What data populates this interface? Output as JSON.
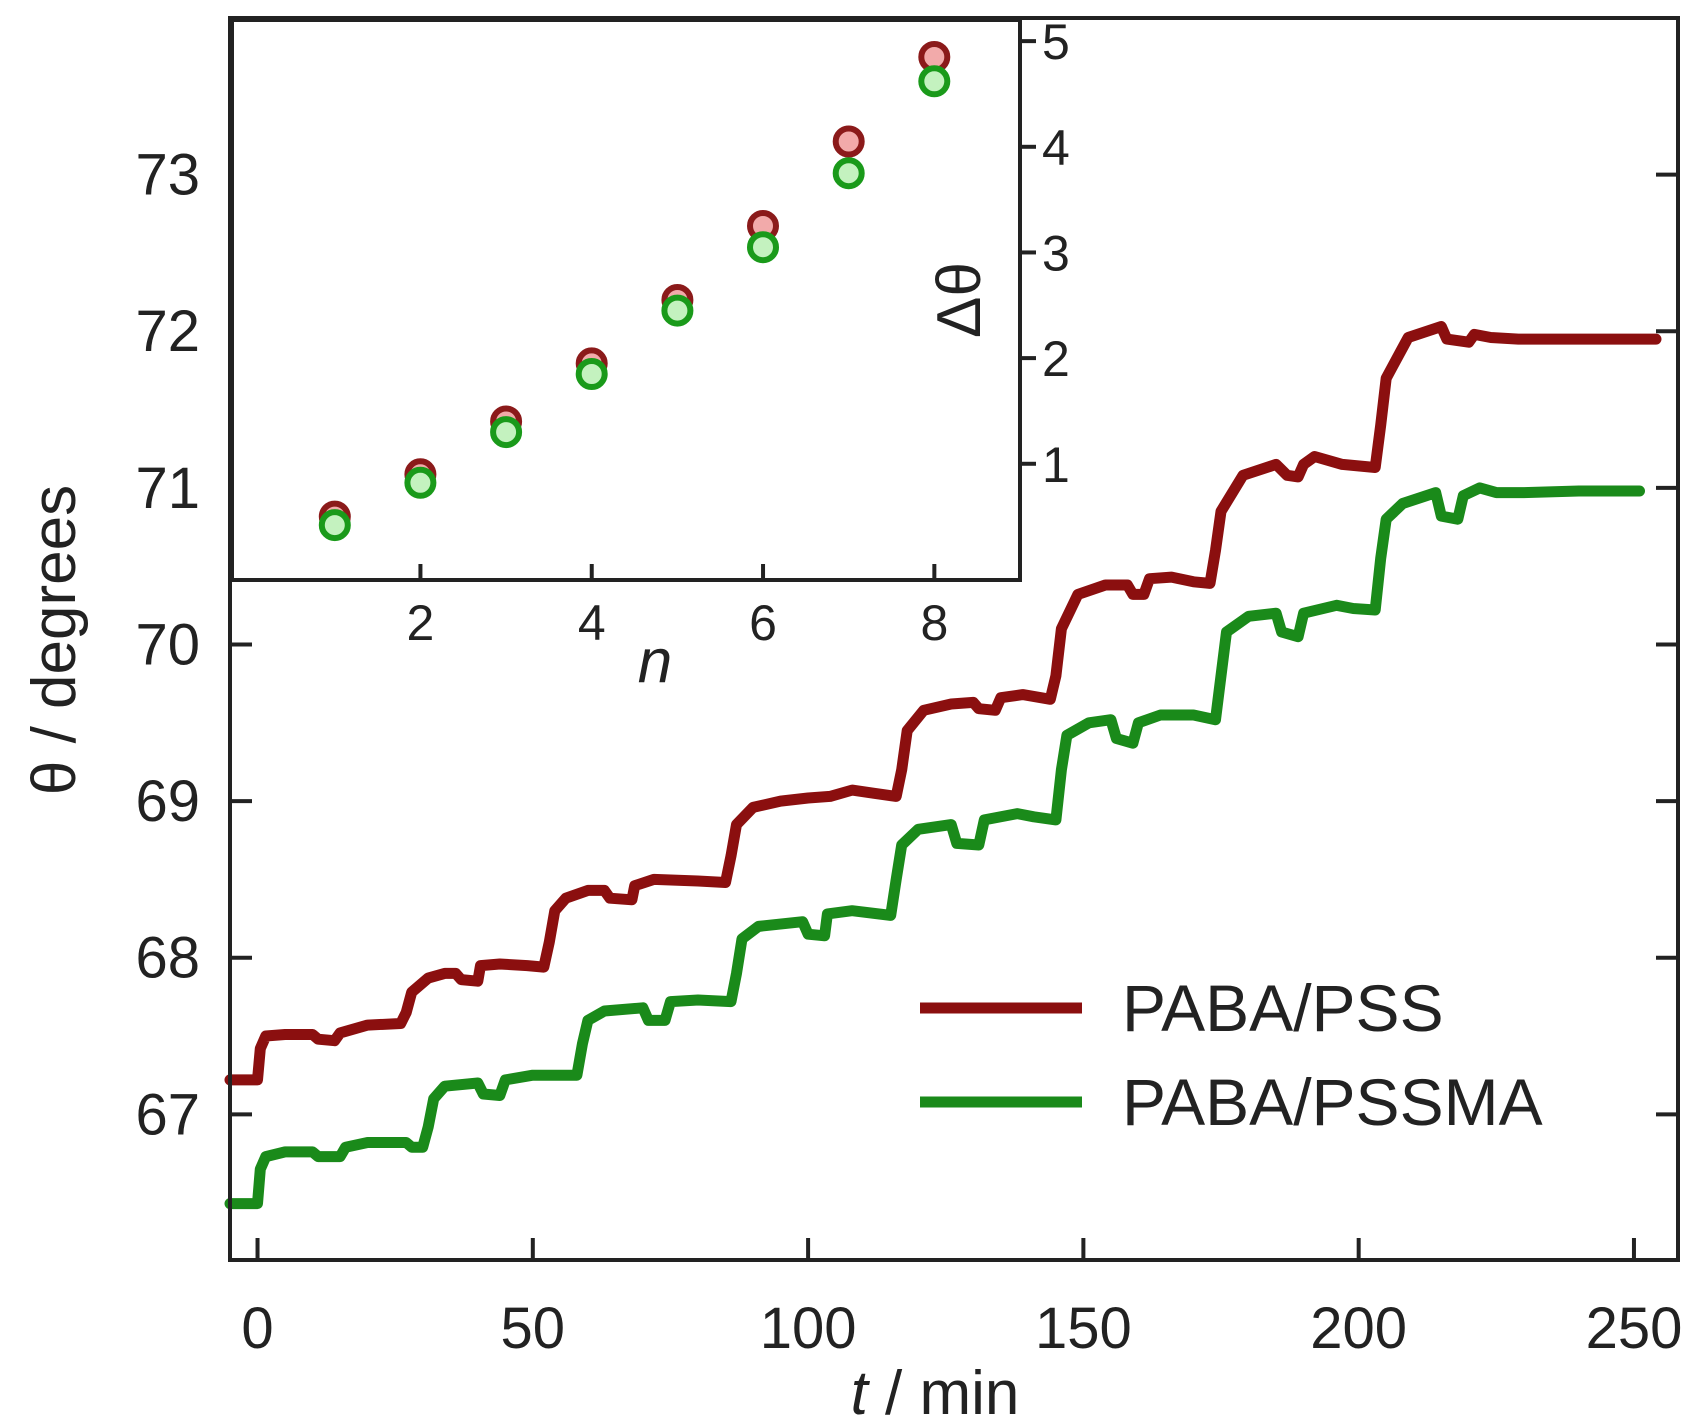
{
  "chart_data": [
    {
      "type": "line",
      "xlabel_var": "t",
      "xlabel_rest": " / min",
      "ylabel": "θ / degrees",
      "xlim": [
        -5,
        258
      ],
      "ylim": [
        66.07,
        74.0
      ],
      "x_ticks": [
        0,
        50,
        100,
        150,
        200,
        250
      ],
      "y_ticks": [
        67,
        68,
        69,
        70,
        71,
        72,
        73
      ],
      "grid": false,
      "legend_position": "bottom-right",
      "series": [
        {
          "name": "PABA/PSS",
          "color": "#8b0f0f",
          "points": [
            [
              -5,
              67.22
            ],
            [
              0,
              67.22
            ],
            [
              0.5,
              67.42
            ],
            [
              1.5,
              67.5
            ],
            [
              5,
              67.51
            ],
            [
              10,
              67.51
            ],
            [
              11,
              67.48
            ],
            [
              14,
              67.47
            ],
            [
              15,
              67.52
            ],
            [
              20,
              67.57
            ],
            [
              26,
              67.58
            ],
            [
              27,
              67.65
            ],
            [
              28,
              67.78
            ],
            [
              31,
              67.87
            ],
            [
              34,
              67.9
            ],
            [
              36,
              67.9
            ],
            [
              37,
              67.86
            ],
            [
              40,
              67.85
            ],
            [
              40.5,
              67.95
            ],
            [
              44,
              67.96
            ],
            [
              49,
              67.95
            ],
            [
              52,
              67.94
            ],
            [
              53,
              68.1
            ],
            [
              54,
              68.3
            ],
            [
              56,
              68.38
            ],
            [
              60,
              68.43
            ],
            [
              63,
              68.43
            ],
            [
              64,
              68.38
            ],
            [
              68,
              68.37
            ],
            [
              68.5,
              68.46
            ],
            [
              72,
              68.5
            ],
            [
              80,
              68.49
            ],
            [
              85,
              68.48
            ],
            [
              86,
              68.65
            ],
            [
              87,
              68.85
            ],
            [
              90,
              68.96
            ],
            [
              95,
              69.0
            ],
            [
              100,
              69.02
            ],
            [
              104,
              69.03
            ],
            [
              108,
              69.07
            ],
            [
              112,
              69.05
            ],
            [
              116,
              69.03
            ],
            [
              117,
              69.2
            ],
            [
              118,
              69.45
            ],
            [
              121,
              69.58
            ],
            [
              126,
              69.62
            ],
            [
              130,
              69.63
            ],
            [
              131,
              69.59
            ],
            [
              134,
              69.58
            ],
            [
              135,
              69.66
            ],
            [
              139,
              69.68
            ],
            [
              144,
              69.65
            ],
            [
              145,
              69.8
            ],
            [
              146,
              70.1
            ],
            [
              149,
              70.32
            ],
            [
              154,
              70.38
            ],
            [
              158,
              70.38
            ],
            [
              159,
              70.32
            ],
            [
              161,
              70.32
            ],
            [
              162,
              70.42
            ],
            [
              166,
              70.43
            ],
            [
              170,
              70.4
            ],
            [
              173,
              70.39
            ],
            [
              174,
              70.6
            ],
            [
              175,
              70.85
            ],
            [
              179,
              71.08
            ],
            [
              185,
              71.15
            ],
            [
              187,
              71.08
            ],
            [
              189,
              71.07
            ],
            [
              190,
              71.15
            ],
            [
              192,
              71.2
            ],
            [
              197,
              71.15
            ],
            [
              203,
              71.13
            ],
            [
              204,
              71.4
            ],
            [
              205,
              71.7
            ],
            [
              209,
              71.96
            ],
            [
              215,
              72.03
            ],
            [
              216,
              71.95
            ],
            [
              220,
              71.93
            ],
            [
              221,
              71.98
            ],
            [
              224,
              71.96
            ],
            [
              229,
              71.95
            ],
            [
              240,
              71.95
            ],
            [
              254,
              71.95
            ]
          ]
        },
        {
          "name": "PABA/PSSMA",
          "color": "#1a8a1a",
          "points": [
            [
              -5,
              66.43
            ],
            [
              0,
              66.43
            ],
            [
              0.5,
              66.65
            ],
            [
              1.5,
              66.73
            ],
            [
              5,
              66.76
            ],
            [
              10,
              66.76
            ],
            [
              11,
              66.73
            ],
            [
              15,
              66.73
            ],
            [
              16,
              66.79
            ],
            [
              20,
              66.82
            ],
            [
              27,
              66.82
            ],
            [
              28,
              66.79
            ],
            [
              30,
              66.79
            ],
            [
              31,
              66.92
            ],
            [
              32,
              67.1
            ],
            [
              34,
              67.18
            ],
            [
              40,
              67.2
            ],
            [
              41,
              67.13
            ],
            [
              44,
              67.12
            ],
            [
              45,
              67.22
            ],
            [
              50,
              67.25
            ],
            [
              58,
              67.25
            ],
            [
              59,
              67.45
            ],
            [
              60,
              67.6
            ],
            [
              63,
              67.66
            ],
            [
              70,
              67.68
            ],
            [
              71,
              67.6
            ],
            [
              74,
              67.6
            ],
            [
              75,
              67.72
            ],
            [
              80,
              67.73
            ],
            [
              86,
              67.72
            ],
            [
              87,
              67.9
            ],
            [
              88,
              68.12
            ],
            [
              91,
              68.2
            ],
            [
              99,
              68.23
            ],
            [
              100,
              68.15
            ],
            [
              103,
              68.14
            ],
            [
              103.5,
              68.28
            ],
            [
              108,
              68.3
            ],
            [
              115,
              68.27
            ],
            [
              116,
              68.5
            ],
            [
              117,
              68.72
            ],
            [
              120,
              68.82
            ],
            [
              126,
              68.85
            ],
            [
              127,
              68.73
            ],
            [
              131,
              68.72
            ],
            [
              132,
              68.88
            ],
            [
              138,
              68.92
            ],
            [
              141,
              68.9
            ],
            [
              145,
              68.88
            ],
            [
              146,
              69.2
            ],
            [
              147,
              69.42
            ],
            [
              151,
              69.5
            ],
            [
              155,
              69.52
            ],
            [
              156,
              69.4
            ],
            [
              159,
              69.37
            ],
            [
              160,
              69.5
            ],
            [
              164,
              69.55
            ],
            [
              170,
              69.55
            ],
            [
              174,
              69.52
            ],
            [
              175,
              69.8
            ],
            [
              176,
              70.08
            ],
            [
              180,
              70.18
            ],
            [
              185,
              70.2
            ],
            [
              186,
              70.08
            ],
            [
              189,
              70.05
            ],
            [
              190,
              70.2
            ],
            [
              196,
              70.25
            ],
            [
              199,
              70.23
            ],
            [
              203,
              70.22
            ],
            [
              204,
              70.55
            ],
            [
              205,
              70.8
            ],
            [
              208,
              70.9
            ],
            [
              214,
              70.97
            ],
            [
              215,
              70.82
            ],
            [
              218,
              70.8
            ],
            [
              219,
              70.95
            ],
            [
              222,
              71.0
            ],
            [
              225,
              70.97
            ],
            [
              230,
              70.97
            ],
            [
              240,
              70.98
            ],
            [
              251,
              70.98
            ]
          ]
        }
      ]
    },
    {
      "type": "scatter",
      "xlabel": "n",
      "ylabel": "Δθ",
      "xlim": [
        -0.2,
        9.0
      ],
      "ylim": [
        -0.1,
        5.2
      ],
      "x_ticks": [
        2,
        4,
        6,
        8
      ],
      "y_ticks": [
        1,
        2,
        3,
        4,
        5
      ],
      "y_axis_side": "right",
      "series": [
        {
          "name": "PABA/PSS",
          "fill": "#f2aaaa",
          "stroke": "#8b1a1a",
          "x": [
            1,
            2,
            3,
            4,
            5,
            6,
            7,
            8
          ],
          "y": [
            0.5,
            0.9,
            1.4,
            1.95,
            2.55,
            3.25,
            4.05,
            4.85
          ]
        },
        {
          "name": "PABA/PSSMA",
          "fill": "#c4f2bf",
          "stroke": "#1a9a1a",
          "x": [
            1,
            2,
            3,
            4,
            5,
            6,
            7,
            8
          ],
          "y": [
            0.42,
            0.82,
            1.3,
            1.85,
            2.45,
            3.05,
            3.75,
            4.62
          ]
        }
      ]
    }
  ]
}
